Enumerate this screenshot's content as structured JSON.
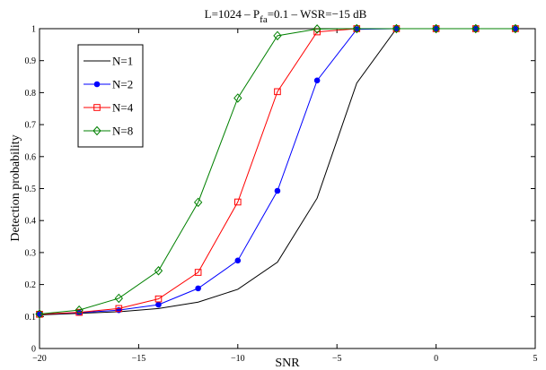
{
  "chart_data": {
    "type": "line",
    "title": {
      "prefix": "L=1024 – P",
      "subscript": "fa",
      "suffix": "=0.1 – WSR=−15 dB"
    },
    "xlabel": "SNR",
    "ylabel": "Detection probability",
    "xlim": [
      -20,
      5
    ],
    "ylim": [
      0,
      1
    ],
    "x_ticks": [
      -20,
      -15,
      -10,
      -5,
      0,
      5
    ],
    "x_tick_labels": [
      "−20",
      "−15",
      "−10",
      "−5",
      "0",
      "5"
    ],
    "y_ticks": [
      0,
      0.1,
      0.2,
      0.3,
      0.4,
      0.5,
      0.6,
      0.7,
      0.8,
      0.9,
      1
    ],
    "y_tick_labels": [
      "0",
      "0.1",
      "0.2",
      "0.3",
      "0.4",
      "0.5",
      "0.6",
      "0.7",
      "0.8",
      "0.9",
      "1"
    ],
    "grid": false,
    "legend_position": "top-left",
    "x": [
      -20,
      -18,
      -16,
      -14,
      -12,
      -10,
      -8,
      -6,
      -4,
      -2,
      0,
      2,
      4
    ],
    "series": [
      {
        "name": "N=1",
        "color": "#000000",
        "marker": "none",
        "values": [
          0.105,
          0.11,
          0.115,
          0.125,
          0.145,
          0.185,
          0.27,
          0.47,
          0.83,
          1.0,
          1.0,
          1.0,
          1.0
        ]
      },
      {
        "name": "N=2",
        "color": "#0000ff",
        "marker": "dot",
        "values": [
          0.107,
          0.112,
          0.12,
          0.137,
          0.188,
          0.275,
          0.493,
          0.838,
          0.998,
          1.0,
          1.0,
          1.0,
          1.0
        ]
      },
      {
        "name": "N=4",
        "color": "#ff0000",
        "marker": "square",
        "values": [
          0.107,
          0.113,
          0.125,
          0.155,
          0.238,
          0.458,
          0.803,
          0.99,
          1.0,
          1.0,
          1.0,
          1.0,
          1.0
        ]
      },
      {
        "name": "N=8",
        "color": "#008000",
        "marker": "diamond",
        "values": [
          0.108,
          0.12,
          0.157,
          0.243,
          0.457,
          0.783,
          0.978,
          0.999,
          1.0,
          1.0,
          1.0,
          1.0,
          1.0
        ]
      }
    ]
  }
}
